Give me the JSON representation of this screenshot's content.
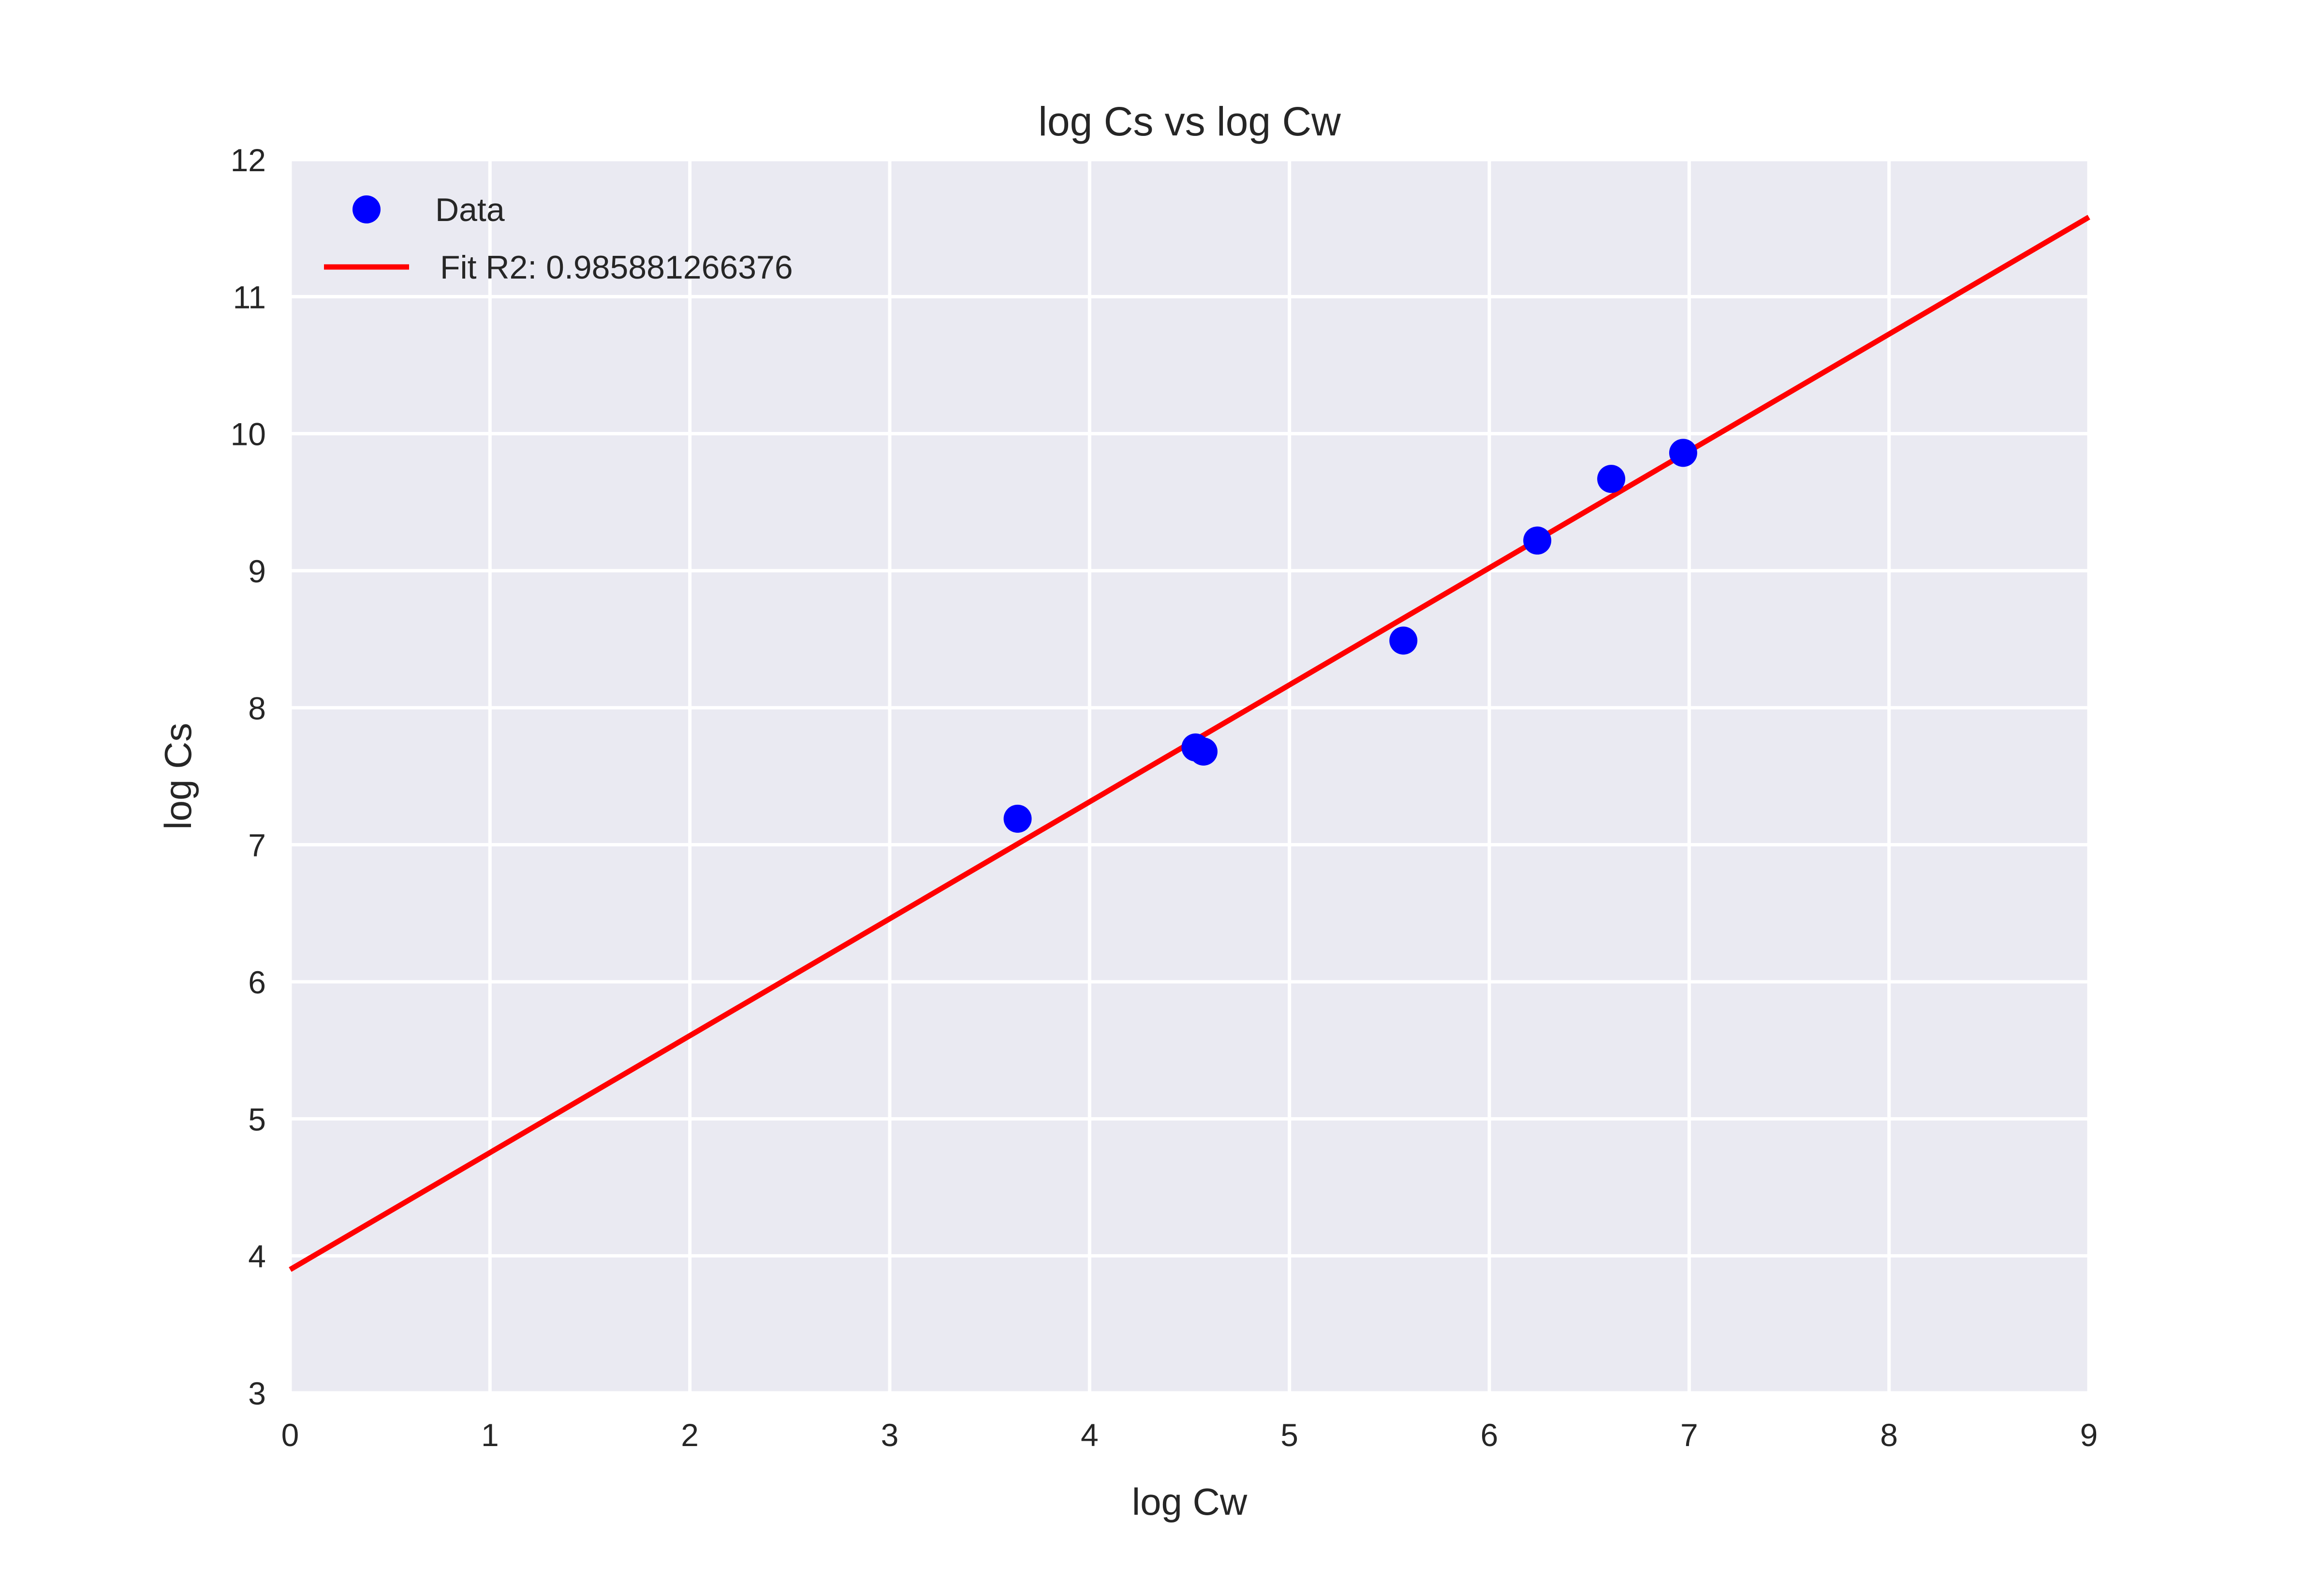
{
  "chart_data": {
    "type": "scatter",
    "title": "log Cs vs log Cw",
    "xlabel": "log Cw",
    "ylabel": "log Cs",
    "xlim": [
      0,
      9
    ],
    "ylim": [
      3,
      12
    ],
    "xticks": [
      "0",
      "1",
      "2",
      "3",
      "4",
      "5",
      "6",
      "7",
      "8",
      "9"
    ],
    "yticks": [
      "3",
      "4",
      "5",
      "6",
      "7",
      "8",
      "9",
      "10",
      "11",
      "12"
    ],
    "grid": true,
    "legend_position": "top-left",
    "series": [
      {
        "name": "Data",
        "kind": "scatter",
        "color": "#0000FF",
        "x": [
          3.64,
          4.53,
          4.57,
          5.57,
          6.24,
          6.61,
          6.97
        ],
        "y": [
          7.19,
          7.71,
          7.68,
          8.49,
          9.22,
          9.67,
          9.86
        ]
      },
      {
        "name": "Fit R2: 0.985881266376",
        "kind": "line",
        "color": "#FF0000",
        "x": [
          0,
          9
        ],
        "y": [
          3.9,
          11.58
        ]
      }
    ]
  }
}
